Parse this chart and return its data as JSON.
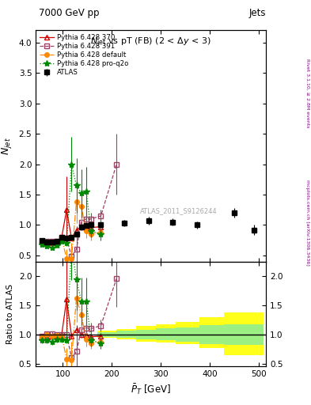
{
  "header_left": "7000 GeV pp",
  "header_right": "Jets",
  "ylabel_main": "$\\bar{N}_{jet}$",
  "ylabel_ratio": "Ratio to ATLAS",
  "xlabel": "$\\bar{P}_T$ [GeV]",
  "watermark": "ATLAS_2011_S9126244",
  "right_label_top": "Rivet 3.1.10, ≥ 2.8M events",
  "right_label_bottom": "mcplots.cern.ch [arXiv:1306.3436]",
  "atlas_x": [
    58,
    68,
    78,
    88,
    98,
    108,
    118,
    128,
    138,
    148,
    158,
    178,
    225,
    275,
    325,
    375,
    450,
    490
  ],
  "atlas_y": [
    0.75,
    0.72,
    0.72,
    0.73,
    0.8,
    0.78,
    0.8,
    0.85,
    0.97,
    0.99,
    1.0,
    1.0,
    1.03,
    1.07,
    1.05,
    1.0,
    1.2,
    0.92
  ],
  "atlas_yerr": [
    0.03,
    0.03,
    0.03,
    0.03,
    0.03,
    0.04,
    0.04,
    0.04,
    0.04,
    0.04,
    0.05,
    0.05,
    0.05,
    0.06,
    0.06,
    0.06,
    0.08,
    0.08
  ],
  "p370_x": [
    58,
    68,
    78,
    88,
    98,
    108,
    118,
    128,
    138,
    148,
    158,
    178
  ],
  "p370_y": [
    0.73,
    0.7,
    0.7,
    0.72,
    0.8,
    1.25,
    0.78,
    0.92,
    0.97,
    0.98,
    0.96,
    0.97
  ],
  "p370_yerr": [
    0.03,
    0.03,
    0.03,
    0.03,
    0.03,
    0.55,
    0.04,
    0.06,
    0.06,
    0.06,
    0.06,
    0.06
  ],
  "p391_x": [
    58,
    68,
    78,
    88,
    98,
    108,
    118,
    128,
    138,
    148,
    158,
    178,
    210
  ],
  "p391_y": [
    0.73,
    0.73,
    0.73,
    0.73,
    0.8,
    0.78,
    0.48,
    0.6,
    1.05,
    1.1,
    1.1,
    1.15,
    2.0
  ],
  "p391_yerr": [
    0.03,
    0.03,
    0.03,
    0.03,
    0.03,
    0.04,
    0.1,
    0.3,
    0.1,
    0.1,
    0.1,
    0.1,
    0.5
  ],
  "pdef_x": [
    58,
    68,
    78,
    88,
    98,
    108,
    118,
    128,
    138,
    148,
    158,
    178
  ],
  "pdef_y": [
    0.72,
    0.72,
    0.7,
    0.72,
    0.78,
    0.45,
    0.45,
    1.38,
    1.3,
    0.9,
    0.85,
    0.88
  ],
  "pdef_yerr": [
    0.03,
    0.03,
    0.03,
    0.03,
    0.03,
    0.15,
    0.25,
    0.35,
    0.25,
    0.12,
    0.1,
    0.08
  ],
  "pq2o_x": [
    58,
    68,
    78,
    88,
    98,
    108,
    118,
    128,
    138,
    148,
    158,
    178
  ],
  "pq2o_y": [
    0.68,
    0.65,
    0.63,
    0.67,
    0.73,
    0.7,
    2.0,
    1.65,
    1.52,
    1.55,
    0.9,
    0.85
  ],
  "pq2o_yerr": [
    0.04,
    0.04,
    0.04,
    0.04,
    0.04,
    0.04,
    0.45,
    0.45,
    0.4,
    0.4,
    0.1,
    0.1
  ],
  "band_edges": [
    170,
    210,
    250,
    290,
    330,
    380,
    430,
    510
  ],
  "band_yellow_lo": [
    0.94,
    0.91,
    0.88,
    0.86,
    0.84,
    0.76,
    0.65,
    0.55
  ],
  "band_yellow_hi": [
    1.06,
    1.09,
    1.14,
    1.18,
    1.22,
    1.3,
    1.38,
    1.48
  ],
  "band_green_lo": [
    0.96,
    0.94,
    0.92,
    0.9,
    0.88,
    0.84,
    0.82,
    0.78
  ],
  "band_green_hi": [
    1.04,
    1.06,
    1.08,
    1.1,
    1.12,
    1.16,
    1.18,
    1.22
  ],
  "color_atlas": "#000000",
  "color_p370": "#cc0000",
  "color_p391": "#994466",
  "color_pdef": "#ff8800",
  "color_pq2o": "#008800",
  "ylim_main": [
    0.4,
    4.2
  ],
  "ylim_ratio": [
    0.45,
    2.25
  ],
  "xlim": [
    45,
    515
  ]
}
